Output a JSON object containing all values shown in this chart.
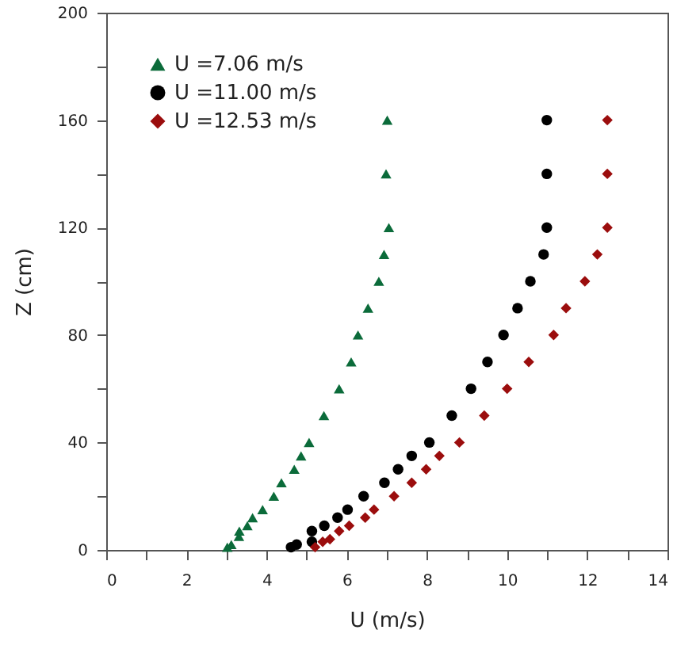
{
  "chart_data": {
    "type": "scatter",
    "xlabel": "U (m/s)",
    "ylabel": "Z (cm)",
    "xlim": [
      0,
      14
    ],
    "xticks": [
      0,
      {
        "value": 1,
        "label": null
      },
      2,
      {
        "value": 3,
        "label": null
      },
      4,
      {
        "value": 5,
        "label": null
      },
      6,
      {
        "value": 7,
        "label": null
      },
      8,
      {
        "value": 9,
        "label": null
      },
      10,
      {
        "value": 11,
        "label": null
      },
      12,
      {
        "value": 13,
        "label": null
      },
      14
    ],
    "ylim": [
      0,
      200
    ],
    "yticks": [
      0,
      {
        "value": 20,
        "label": null
      },
      40,
      {
        "value": 60,
        "label": null
      },
      80,
      {
        "value": 100,
        "label": null
      },
      120,
      {
        "value": 140,
        "label": null
      },
      160,
      {
        "value": 180,
        "label": null
      },
      200
    ],
    "grid": false,
    "legend": "top left",
    "series": [
      {
        "name": "U =7.06 m/s",
        "color": "#0b6b3a",
        "marker": "triangle",
        "x": [
          7.01,
          6.98,
          7.05,
          6.93,
          6.8,
          6.53,
          6.28,
          6.11,
          5.81,
          5.43,
          5.06,
          4.86,
          4.69,
          4.37,
          4.18,
          3.9,
          3.65,
          3.52,
          3.32,
          3.31,
          3.12,
          3.02
        ],
        "values": [
          160,
          140,
          120,
          110,
          100,
          90,
          80,
          70,
          60,
          50,
          40,
          35,
          30,
          25,
          20,
          15,
          12,
          9,
          7,
          5,
          2,
          1
        ]
      },
      {
        "name": "U =11.00 m/s",
        "color": "#000000",
        "marker": "circle",
        "x": [
          10.99,
          10.99,
          10.99,
          10.91,
          10.58,
          10.26,
          9.91,
          9.51,
          9.1,
          8.62,
          8.06,
          7.62,
          7.28,
          6.94,
          6.42,
          6.02,
          5.77,
          5.44,
          5.13,
          5.13,
          4.75,
          4.61
        ],
        "values": [
          160,
          140,
          120,
          110,
          100,
          90,
          80,
          70,
          60,
          50,
          40,
          35,
          30,
          25,
          20,
          15,
          12,
          9,
          7,
          3,
          2,
          1
        ]
      },
      {
        "name": "U =12.53 m/s",
        "color": "#9b0d0d",
        "marker": "diamond",
        "x": [
          12.5,
          12.5,
          12.5,
          12.25,
          11.94,
          11.47,
          11.16,
          10.54,
          10.0,
          9.43,
          8.81,
          8.31,
          7.98,
          7.62,
          7.18,
          6.68,
          6.46,
          6.06,
          5.81,
          5.58,
          5.4,
          5.21
        ],
        "values": [
          160,
          140,
          120,
          110,
          100,
          90,
          80,
          70,
          60,
          50,
          40,
          35,
          30,
          25,
          20,
          15,
          12,
          9,
          7,
          4,
          3,
          1
        ]
      }
    ]
  }
}
